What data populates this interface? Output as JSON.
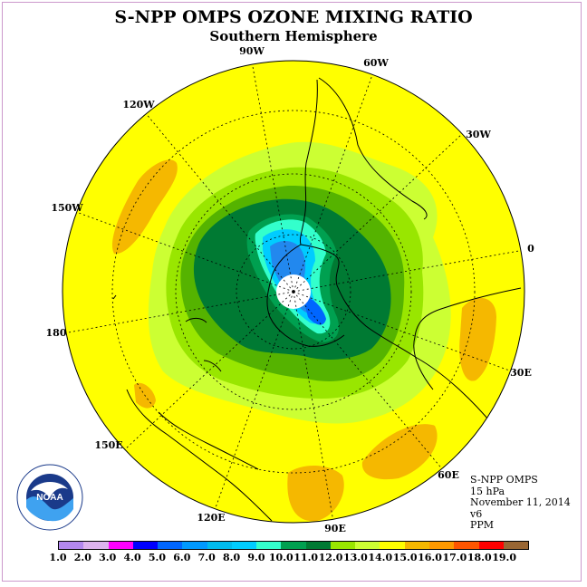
{
  "title": "S-NPP OMPS OZONE MIXING RATIO",
  "subtitle": "Southern Hemisphere",
  "map": {
    "projection": "polar stereographic, south pole",
    "longitude_labels": [
      "90W",
      "60W",
      "30W",
      "0",
      "30E",
      "60E",
      "90E",
      "120E",
      "150E",
      "180",
      "150W",
      "120W"
    ],
    "ozone_regions_ppm": [
      {
        "range": "14.0-15.0",
        "color": "#ffff00",
        "area": "mid latitudes / background"
      },
      {
        "range": "15.0-16.0",
        "color": "#f5b800",
        "area": "patches in the Pacific, Atlantic and Indian Ocean mid latitudes"
      },
      {
        "range": "13.0-14.0",
        "color": "#ccff33",
        "area": "outer ring"
      },
      {
        "range": "12.0-13.0",
        "color": "#99e600",
        "area": "ring around vortex"
      },
      {
        "range": "11.0-12.0",
        "color": "#55b300",
        "area": "vortex edge"
      },
      {
        "range": "10.0-11.0",
        "color": "#007a33",
        "area": "vortex"
      },
      {
        "range": "9.0-10.0",
        "color": "#00a050",
        "area": "inner vortex rim"
      },
      {
        "range": "8.0-9.0",
        "color": "#33ffcc",
        "area": "inner core"
      },
      {
        "range": "7.0-8.0",
        "color": "#00ccff",
        "area": "inner core"
      },
      {
        "range": "5.0-7.0",
        "color": "#2288ee",
        "area": "core near Antarctic Peninsula"
      }
    ],
    "pole_mask": "no data (white circle at pole)"
  },
  "info": {
    "instrument": "S-NPP OMPS",
    "level": "15 hPa",
    "date": "November 11, 2014",
    "version": "v6",
    "units": "PPM"
  },
  "colorbar": {
    "colors": [
      "#b388ee",
      "#ddb3ee",
      "#ff00ff",
      "#0000ff",
      "#0066ff",
      "#0099ff",
      "#00bbee",
      "#00ccff",
      "#33ffcc",
      "#00a050",
      "#007a33",
      "#99e600",
      "#ccff33",
      "#ffff00",
      "#f5b800",
      "#ff9900",
      "#ff5500",
      "#ff0000",
      "#996633"
    ],
    "ticks": [
      "1.0",
      "2.0",
      "3.0",
      "4.0",
      "5.0",
      "6.0",
      "7.0",
      "8.0",
      "9.0",
      "10.0",
      "11.0",
      "12.0",
      "13.0",
      "14.0",
      "15.0",
      "16.0",
      "17.0",
      "18.0",
      "19.0"
    ]
  },
  "logo": {
    "text": "NOAA",
    "icon": "noaa-logo-icon"
  }
}
